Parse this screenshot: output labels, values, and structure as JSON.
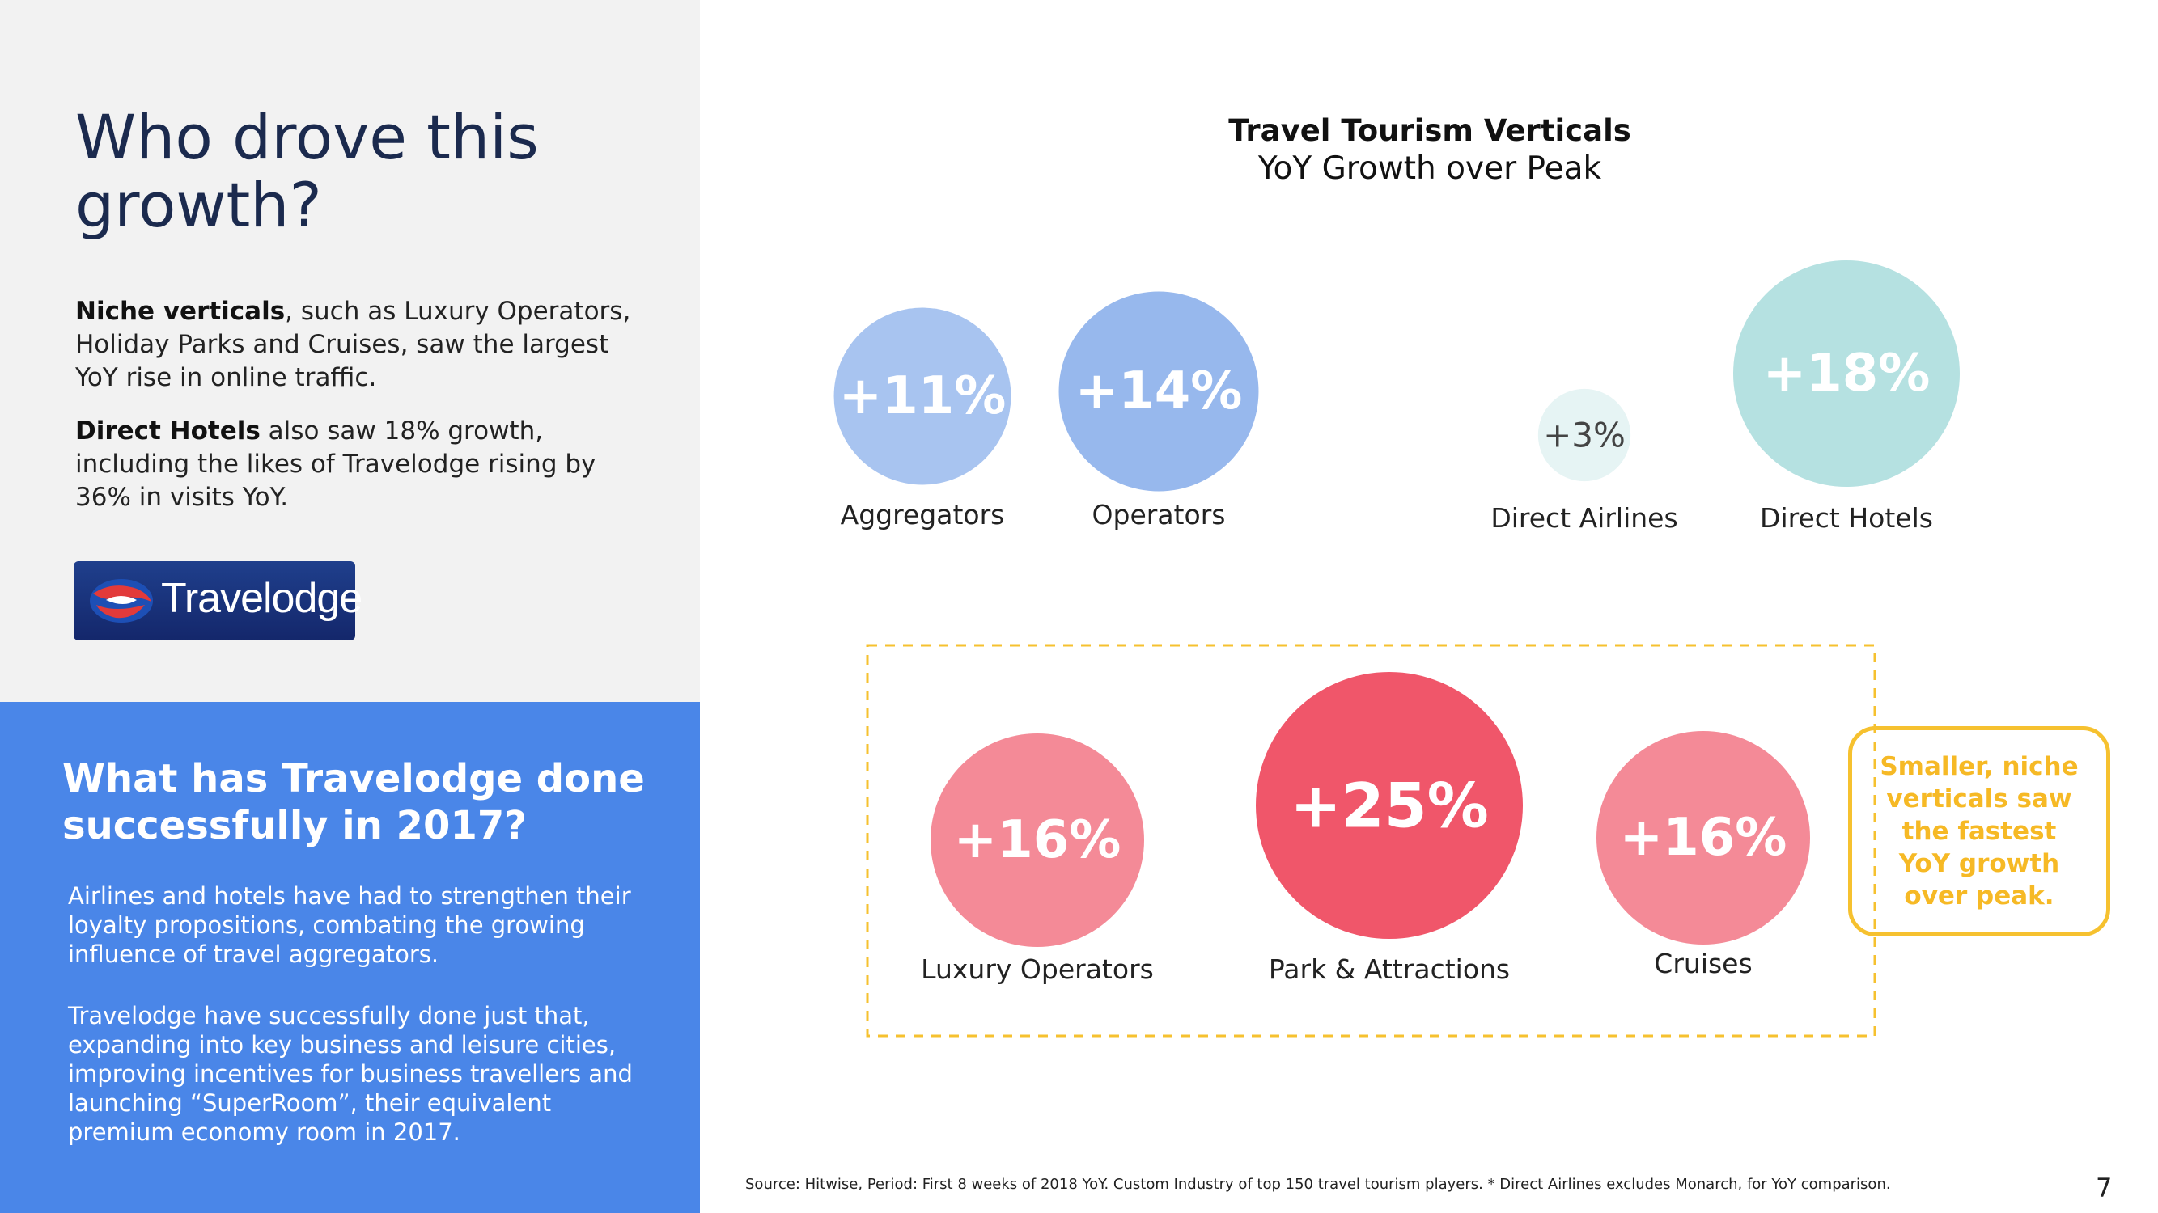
{
  "left": {
    "title": "Who drove this growth?",
    "p1_bold": "Niche verticals",
    "p1_rest": ", such as Luxury Operators, Holiday Parks and Cruises, saw the largest YoY rise in online  traffic.",
    "p2_bold": "Direct Hotels",
    "p2_rest": " also saw 18% growth, including  the likes of Travelodge rising by 36% in visits YoY.",
    "logo_text": "Travelodge"
  },
  "bottom": {
    "question": "What has Travelodge done successfully in 2017?",
    "p1": "Airlines and hotels have had to strengthen their loyalty propositions, combating the growing influence of travel aggregators.",
    "p2": "Travelodge have successfully done just that, expanding into key business and leisure cities, improving incentives for business travellers and launching “SuperRoom”, their equivalent premium economy room in 2017."
  },
  "chart": {
    "title": "Travel Tourism Verticals",
    "subtitle": "YoY Growth over Peak",
    "callout": "Smaller, niche verticals saw the fastest YoY growth over peak."
  },
  "chart_data": {
    "type": "bubble",
    "title": "Travel Tourism Verticals",
    "subtitle": "YoY Growth over Peak",
    "unit": "%",
    "points": [
      {
        "label": "Aggregators",
        "value": 11,
        "display": "+11%",
        "color": "#a8c4f0",
        "text_color": "#ffffff"
      },
      {
        "label": "Operators",
        "value": 14,
        "display": "+14%",
        "color": "#97b8ed",
        "text_color": "#ffffff"
      },
      {
        "label": "Direct Airlines",
        "value": 3,
        "display": "+3%",
        "color": "#e6f4f4",
        "text_color": "#444444"
      },
      {
        "label": "Direct Hotels",
        "value": 18,
        "display": "+18%",
        "color": "#b5e1e1",
        "text_color": "#ffffff"
      },
      {
        "label": "Luxury Operators",
        "value": 16,
        "display": "+16%",
        "color": "#f48a97",
        "text_color": "#ffffff"
      },
      {
        "label": "Park & Attractions",
        "value": 25,
        "display": "+25%",
        "color": "#f0566a",
        "text_color": "#ffffff"
      },
      {
        "label": "Cruises",
        "value": 16,
        "display": "+16%",
        "color": "#f48a97",
        "text_color": "#ffffff"
      }
    ]
  },
  "footer": {
    "source": "Source: Hitwise, Period: First 8 weeks of 2018 YoY. Custom Industry of top 150 travel tourism players. * Direct Airlines excludes Monarch, for YoY comparison.",
    "page": "7"
  }
}
